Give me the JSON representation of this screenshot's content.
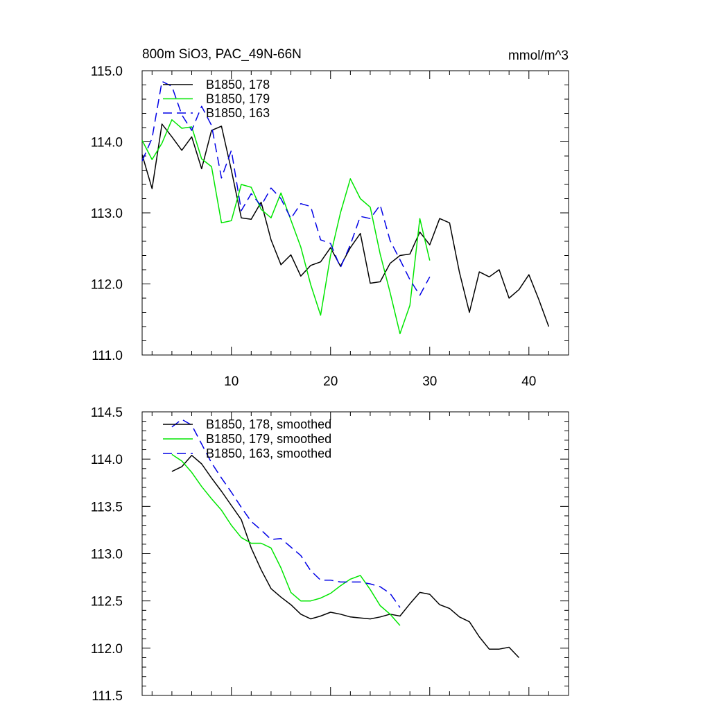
{
  "chart_data": [
    {
      "type": "line",
      "title_left": "800m SiO3, PAC_49N-66N",
      "title_right": "mmol/m^3",
      "xlim": [
        1,
        44
      ],
      "ylim": [
        111.0,
        115.0
      ],
      "x_ticks": [
        10,
        20,
        30,
        40
      ],
      "x_tick_labels": [
        "10",
        "20",
        "30",
        "40"
      ],
      "y_ticks": [
        111.0,
        112.0,
        113.0,
        114.0,
        115.0
      ],
      "y_tick_labels": [
        "111.0",
        "112.0",
        "113.0",
        "114.0",
        "115.0"
      ],
      "legend_position": "top-left",
      "series": [
        {
          "name": "B1850, 178",
          "color": "#000000",
          "dash": "solid",
          "x": [
            1,
            2,
            3,
            4,
            5,
            6,
            7,
            8,
            9,
            10,
            11,
            12,
            13,
            14,
            15,
            16,
            17,
            18,
            19,
            20,
            21,
            22,
            23,
            24,
            25,
            26,
            27,
            28,
            29,
            30,
            31,
            32,
            33,
            34,
            35,
            36,
            37,
            38,
            39,
            40,
            41,
            42
          ],
          "y": [
            113.82,
            113.34,
            114.25,
            114.07,
            113.88,
            114.07,
            113.62,
            114.16,
            114.22,
            113.6,
            112.93,
            112.91,
            113.15,
            112.62,
            112.27,
            112.41,
            112.11,
            112.26,
            112.31,
            112.51,
            112.25,
            112.51,
            112.71,
            112.01,
            112.03,
            112.29,
            112.4,
            112.42,
            112.73,
            112.55,
            112.92,
            112.86,
            112.16,
            111.6,
            112.17,
            112.1,
            112.2,
            111.8,
            111.92,
            112.13,
            111.78,
            111.4
          ]
        },
        {
          "name": "B1850, 179",
          "color": "#00e600",
          "dash": "solid",
          "x": [
            1,
            2,
            3,
            4,
            5,
            6,
            7,
            8,
            9,
            10,
            11,
            12,
            13,
            14,
            15,
            16,
            17,
            18,
            19,
            20,
            21,
            22,
            23,
            24,
            25,
            26,
            27,
            28,
            29,
            30
          ],
          "y": [
            114.02,
            113.75,
            113.98,
            114.31,
            114.19,
            114.21,
            113.76,
            113.65,
            112.86,
            112.89,
            113.4,
            113.36,
            113.05,
            112.93,
            113.28,
            112.9,
            112.52,
            111.99,
            111.56,
            112.4,
            113.0,
            113.48,
            113.2,
            113.08,
            112.42,
            111.88,
            111.3,
            111.7,
            112.92,
            112.33
          ]
        },
        {
          "name": "B1850, 163",
          "color": "#0000e6",
          "dash": "dashed",
          "x": [
            1,
            2,
            3,
            4,
            5,
            6,
            7,
            8,
            9,
            10,
            11,
            12,
            13,
            14,
            15,
            16,
            17,
            18,
            19,
            20,
            21,
            22,
            23,
            24,
            25,
            26,
            27,
            28,
            29,
            30
          ],
          "y": [
            113.73,
            114.05,
            114.85,
            114.78,
            114.38,
            114.16,
            114.5,
            114.23,
            113.49,
            113.88,
            113.03,
            113.27,
            113.1,
            113.35,
            113.2,
            112.92,
            113.13,
            113.09,
            112.62,
            112.57,
            112.23,
            112.55,
            112.95,
            112.92,
            113.11,
            112.61,
            112.34,
            112.06,
            111.84,
            112.1
          ]
        }
      ]
    },
    {
      "type": "line",
      "xlim": [
        1,
        44
      ],
      "ylim": [
        111.5,
        114.5
      ],
      "x_ticks": [
        10,
        20,
        30,
        40
      ],
      "y_ticks": [
        111.5,
        112.0,
        112.5,
        113.0,
        113.5,
        114.0,
        114.5
      ],
      "y_tick_labels": [
        "111.5",
        "112.0",
        "112.5",
        "113.0",
        "113.5",
        "114.0",
        "114.5"
      ],
      "legend_position": "top-left",
      "series": [
        {
          "name": "B1850, 178, smoothed",
          "color": "#000000",
          "dash": "solid",
          "x": [
            4,
            5,
            6,
            7,
            8,
            9,
            10,
            11,
            12,
            13,
            14,
            15,
            16,
            17,
            18,
            19,
            20,
            21,
            22,
            23,
            24,
            25,
            26,
            27,
            28,
            29,
            30,
            31,
            32,
            33,
            34,
            35,
            36,
            37,
            38,
            39
          ],
          "y": [
            113.87,
            113.92,
            114.04,
            113.95,
            113.8,
            113.66,
            113.51,
            113.36,
            113.06,
            112.83,
            112.63,
            112.54,
            112.46,
            112.36,
            112.31,
            112.34,
            112.38,
            112.36,
            112.33,
            112.32,
            112.31,
            112.33,
            112.36,
            112.34,
            112.47,
            112.59,
            112.57,
            112.46,
            112.42,
            112.33,
            112.28,
            112.12,
            111.99,
            111.99,
            112.01,
            111.9
          ]
        },
        {
          "name": "B1850, 179, smoothed",
          "color": "#00e600",
          "dash": "solid",
          "x": [
            4,
            5,
            6,
            7,
            8,
            9,
            10,
            11,
            12,
            13,
            14,
            15,
            16,
            17,
            18,
            19,
            20,
            21,
            22,
            23,
            24,
            25,
            26,
            27
          ],
          "y": [
            114.05,
            113.98,
            113.86,
            113.71,
            113.58,
            113.46,
            113.3,
            113.17,
            113.11,
            113.11,
            113.06,
            112.85,
            112.59,
            112.5,
            112.5,
            112.53,
            112.58,
            112.66,
            112.73,
            112.77,
            112.62,
            112.45,
            112.36,
            112.24
          ]
        },
        {
          "name": "B1850, 163, smoothed",
          "color": "#0000e6",
          "dash": "dashed",
          "x": [
            4,
            5,
            6,
            7,
            8,
            9,
            10,
            11,
            12,
            13,
            14,
            15,
            16,
            17,
            18,
            19,
            20,
            21,
            22,
            23,
            24,
            25,
            26,
            27
          ],
          "y": [
            114.34,
            114.42,
            114.36,
            114.16,
            113.96,
            113.8,
            113.65,
            113.49,
            113.34,
            113.25,
            113.15,
            113.16,
            113.07,
            112.98,
            112.82,
            112.72,
            112.72,
            112.7,
            112.7,
            112.7,
            112.68,
            112.65,
            112.58,
            112.43
          ]
        }
      ]
    }
  ]
}
